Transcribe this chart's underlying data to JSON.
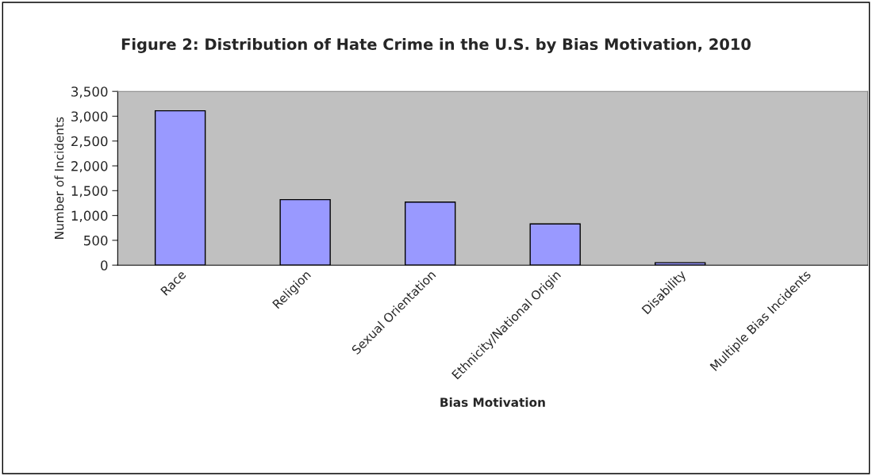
{
  "chart_data": {
    "type": "bar",
    "title": "Figure 2: Distribution of Hate Crime in the U.S. by Bias Motivation, 2010",
    "xlabel": "Bias Motivation",
    "ylabel": "Number of Incidents",
    "categories": [
      "Race",
      "Religion",
      "Sexual Orientation",
      "Ethnicity/National Origin",
      "Disability",
      "Multiple Bias Incidents"
    ],
    "values": [
      3110,
      1320,
      1270,
      830,
      50,
      null
    ],
    "color": "#9999ff",
    "ylim": [
      0,
      3500
    ],
    "yticks": [
      {
        "value": 0,
        "label": "0"
      },
      {
        "value": 500,
        "label": "500"
      },
      {
        "value": 1000,
        "label": "1,000"
      },
      {
        "value": 1500,
        "label": "1,500"
      },
      {
        "value": 2000,
        "label": "2,000"
      },
      {
        "value": 2500,
        "label": "2,500"
      },
      {
        "value": 3000,
        "label": "3,000"
      },
      {
        "value": 3500,
        "label": "3,500"
      }
    ],
    "grid": false,
    "legend": false
  }
}
